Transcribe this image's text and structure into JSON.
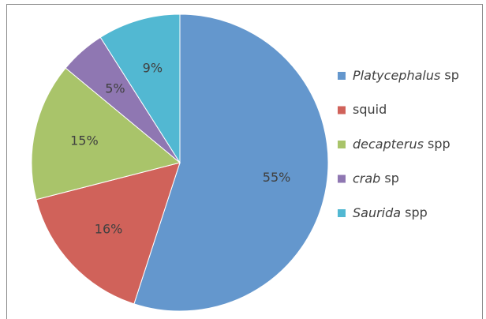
{
  "chart_data": {
    "type": "pie",
    "categories": [
      "Platycephalus sp",
      "squid",
      "decapterus spp",
      "crab sp",
      "Saurida spp"
    ],
    "values": [
      55,
      16,
      15,
      5,
      9
    ],
    "value_labels": [
      "55%",
      "16%",
      "15%",
      "5%",
      "9%"
    ],
    "colors": [
      "#6497cd",
      "#d0625a",
      "#a9c46a",
      "#8f77b2",
      "#52b8d2"
    ],
    "italic_first_word": [
      true,
      false,
      true,
      true,
      true
    ],
    "legend": "right"
  }
}
